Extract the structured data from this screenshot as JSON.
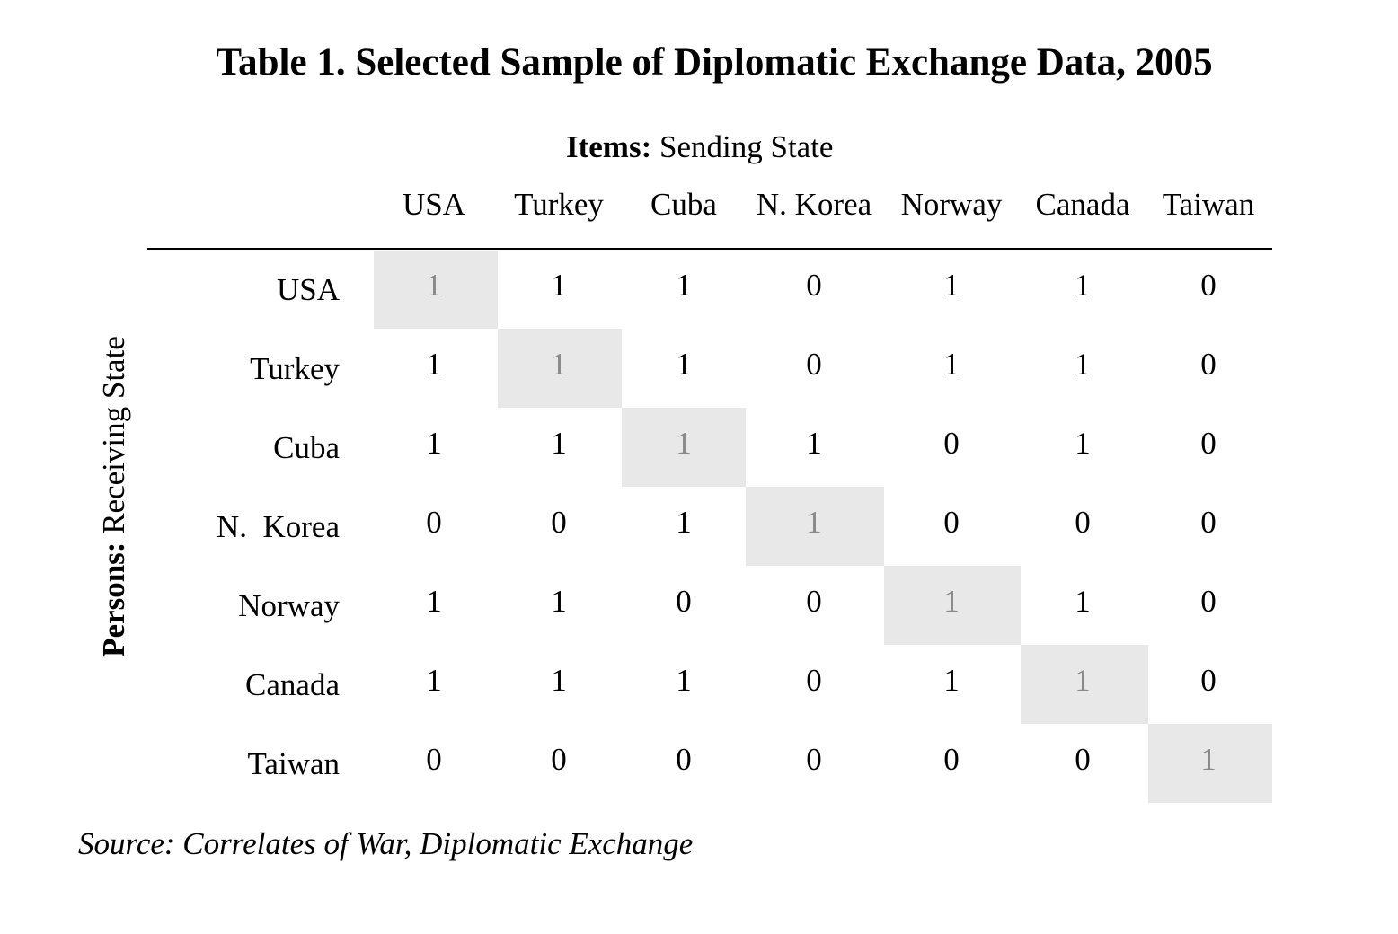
{
  "title": "Table 1. Selected Sample of Diplomatic Exchange Data, 2005",
  "items_label_bold": "Items:",
  "items_label_text": "Sending State",
  "persons_label_bold": "Persons:",
  "persons_label_text": "Receiving State",
  "columns": [
    "USA",
    "Turkey",
    "Cuba",
    "N. Korea",
    "Norway",
    "Canada",
    "Taiwan"
  ],
  "rows": [
    {
      "label": "USA",
      "values": [
        "1",
        "1",
        "1",
        "0",
        "1",
        "1",
        "0"
      ]
    },
    {
      "label": "Turkey",
      "values": [
        "1",
        "1",
        "1",
        "0",
        "1",
        "1",
        "0"
      ]
    },
    {
      "label": "Cuba",
      "values": [
        "1",
        "1",
        "1",
        "1",
        "0",
        "1",
        "0"
      ]
    },
    {
      "label": "N.  Korea",
      "values": [
        "0",
        "0",
        "1",
        "1",
        "0",
        "0",
        "0"
      ]
    },
    {
      "label": "Norway",
      "values": [
        "1",
        "1",
        "0",
        "0",
        "1",
        "1",
        "0"
      ]
    },
    {
      "label": "Canada",
      "values": [
        "1",
        "1",
        "1",
        "0",
        "1",
        "1",
        "0"
      ]
    },
    {
      "label": "Taiwan",
      "values": [
        "0",
        "0",
        "0",
        "0",
        "0",
        "0",
        "1"
      ]
    }
  ],
  "source": "Source: Correlates of War, Diplomatic Exchange",
  "colors": {
    "diagonal_shade": "#e8e8e8",
    "diagonal_text": "#8a8a8a",
    "text": "#000000"
  }
}
